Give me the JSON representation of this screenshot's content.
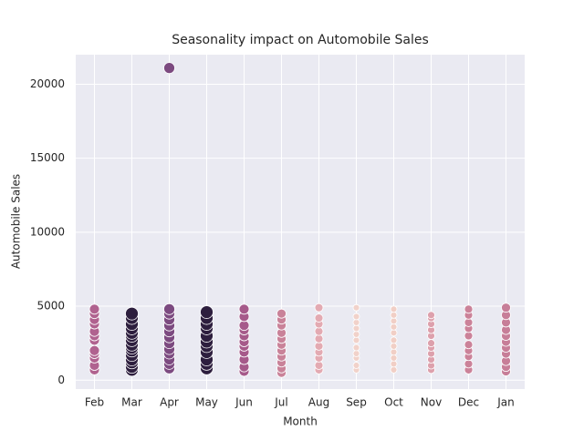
{
  "chart_data": {
    "type": "scatter",
    "title": "Seasonality impact on Automobile Sales",
    "x_label": "Month",
    "y_label": "Automobile Sales",
    "categories": [
      "Feb",
      "Mar",
      "Apr",
      "May",
      "Jun",
      "Jul",
      "Aug",
      "Sep",
      "Oct",
      "Nov",
      "Dec",
      "Jan"
    ],
    "values": [
      [
        700,
        1000,
        1500,
        1800,
        2000,
        2700,
        3000,
        3300,
        3800,
        4100,
        4500,
        4800
      ],
      [
        700,
        900,
        1200,
        1400,
        1700,
        2000,
        2200,
        2400,
        2700,
        3000,
        3200,
        3500,
        3800,
        4200,
        4500
      ],
      [
        800,
        1100,
        1400,
        1800,
        2100,
        2500,
        2900,
        3300,
        3700,
        4100,
        4500,
        4800,
        21100
      ],
      [
        800,
        1100,
        1400,
        1900,
        2300,
        2600,
        3000,
        3500,
        3800,
        4200,
        4600
      ],
      [
        600,
        900,
        1400,
        1900,
        2300,
        2600,
        3000,
        3400,
        3700,
        4300,
        4800
      ],
      [
        500,
        800,
        1200,
        1600,
        2000,
        2400,
        2800,
        3200,
        3700,
        4100,
        4500
      ],
      [
        700,
        1000,
        1500,
        1900,
        2300,
        2800,
        3300,
        3800,
        4200,
        4900
      ],
      [
        700,
        1000,
        1500,
        1800,
        2200,
        2700,
        3100,
        3500,
        3900,
        4300,
        4900
      ],
      [
        700,
        1100,
        1500,
        1900,
        2300,
        2700,
        3200,
        3600,
        4000,
        4400,
        4800
      ],
      [
        700,
        1000,
        1400,
        1800,
        2200,
        2500,
        3000,
        3400,
        3800,
        4200,
        4400
      ],
      [
        700,
        1100,
        1600,
        2000,
        2400,
        3000,
        3500,
        3900,
        4400,
        4800
      ],
      [
        600,
        900,
        1300,
        1800,
        2200,
        2600,
        3000,
        3400,
        3900,
        4400,
        4900
      ]
    ],
    "colors": [
      "#b0628f",
      "#2d1e3e",
      "#7c4a80",
      "#2d1e3e",
      "#a65a8a",
      "#c98299",
      "#e3aab2",
      "#f1d2ca",
      "#f1cfc6",
      "#dda0ac",
      "#cb8299",
      "#c77e98"
    ],
    "marker_sizes": [
      5.5,
      7,
      6,
      7,
      5.5,
      5,
      4.5,
      3.5,
      3.5,
      4,
      4.5,
      5
    ],
    "ylim": [
      -600,
      22000
    ],
    "yticks": [
      0,
      5000,
      10000,
      15000,
      20000
    ],
    "grid": true
  }
}
